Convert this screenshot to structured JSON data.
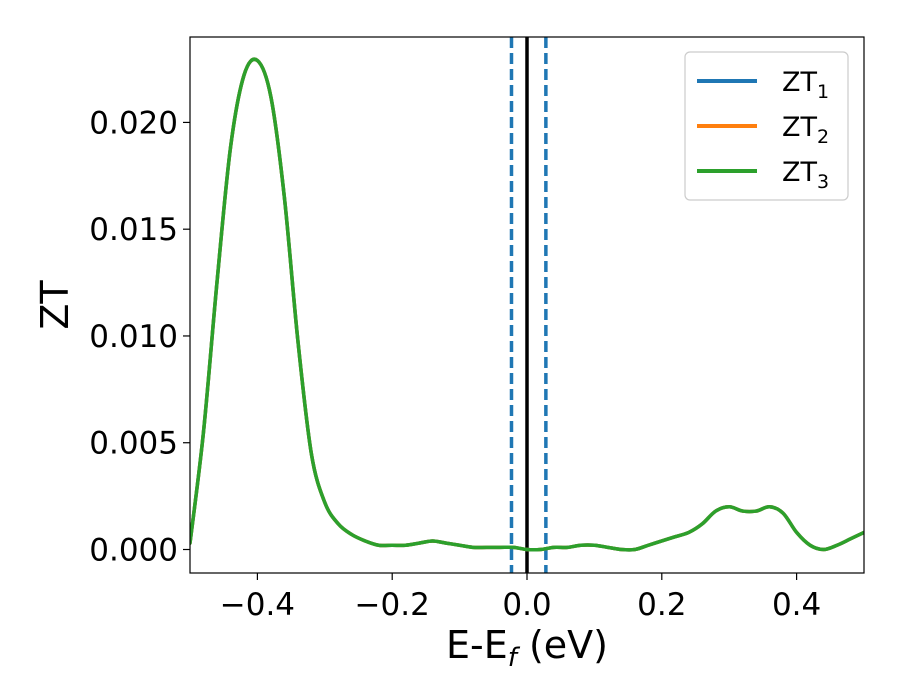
{
  "chart_data": {
    "type": "line",
    "xlabel": {
      "main": "E-E",
      "sub": "f",
      "suffix": " (eV)"
    },
    "ylabel": "ZT",
    "xlim": [
      -0.5,
      0.5
    ],
    "ylim": [
      -0.0011,
      0.024
    ],
    "xticks": [
      -0.4,
      -0.2,
      0.0,
      0.2,
      0.4
    ],
    "xtick_labels": [
      "−0.4",
      "−0.2",
      "0.0",
      "0.2",
      "0.4"
    ],
    "yticks": [
      0.0,
      0.005,
      0.01,
      0.015,
      0.02
    ],
    "ytick_labels": [
      "0.000",
      "0.005",
      "0.010",
      "0.015",
      "0.020"
    ],
    "legend": {
      "position": "top-right"
    },
    "vlines": [
      {
        "x": 0.0,
        "style": "solid",
        "color": "#000000"
      },
      {
        "x": -0.023,
        "style": "dashed",
        "color": "#1f77b4"
      },
      {
        "x": 0.028,
        "style": "dashed",
        "color": "#1f77b4"
      }
    ],
    "x": [
      -0.5,
      -0.48,
      -0.46,
      -0.44,
      -0.42,
      -0.4,
      -0.38,
      -0.36,
      -0.34,
      -0.32,
      -0.3,
      -0.28,
      -0.26,
      -0.24,
      -0.22,
      -0.2,
      -0.18,
      -0.16,
      -0.14,
      -0.12,
      -0.1,
      -0.08,
      -0.06,
      -0.04,
      -0.02,
      0.0,
      0.02,
      0.04,
      0.06,
      0.08,
      0.1,
      0.12,
      0.14,
      0.16,
      0.18,
      0.2,
      0.22,
      0.24,
      0.26,
      0.28,
      0.3,
      0.32,
      0.34,
      0.36,
      0.38,
      0.4,
      0.42,
      0.44,
      0.46,
      0.48,
      0.5
    ],
    "series": [
      {
        "name": "ZT",
        "sub": "1",
        "color": "#1f77b4",
        "values": [
          0.0003,
          0.0055,
          0.0125,
          0.0188,
          0.0222,
          0.0229,
          0.0212,
          0.0165,
          0.0098,
          0.0045,
          0.0022,
          0.0012,
          0.0007,
          0.0004,
          0.0002,
          0.0002,
          0.0002,
          0.0003,
          0.0004,
          0.0003,
          0.0002,
          0.0001,
          0.0001,
          0.0001,
          0.0001,
          0.0,
          0.0,
          0.0001,
          0.0001,
          0.0002,
          0.0002,
          0.0001,
          0.0,
          0.0,
          0.0002,
          0.0004,
          0.0006,
          0.0008,
          0.0012,
          0.0018,
          0.002,
          0.0018,
          0.0018,
          0.002,
          0.0017,
          0.0008,
          0.0002,
          0.0,
          0.0002,
          0.0005,
          0.0008
        ]
      },
      {
        "name": "ZT",
        "sub": "2",
        "color": "#ff7f0e",
        "values": [
          0.0003,
          0.0055,
          0.0125,
          0.0188,
          0.0222,
          0.0229,
          0.0212,
          0.0165,
          0.0098,
          0.0045,
          0.0022,
          0.0012,
          0.0007,
          0.0004,
          0.0002,
          0.0002,
          0.0002,
          0.0003,
          0.0004,
          0.0003,
          0.0002,
          0.0001,
          0.0001,
          0.0001,
          0.0001,
          0.0,
          0.0,
          0.0001,
          0.0001,
          0.0002,
          0.0002,
          0.0001,
          0.0,
          0.0,
          0.0002,
          0.0004,
          0.0006,
          0.0008,
          0.0012,
          0.0018,
          0.002,
          0.0018,
          0.0018,
          0.002,
          0.0017,
          0.0008,
          0.0002,
          0.0,
          0.0002,
          0.0005,
          0.0008
        ]
      },
      {
        "name": "ZT",
        "sub": "3",
        "color": "#2ca02c",
        "values": [
          0.0003,
          0.0055,
          0.0125,
          0.0188,
          0.0222,
          0.0229,
          0.0212,
          0.0165,
          0.0098,
          0.0045,
          0.0022,
          0.0012,
          0.0007,
          0.0004,
          0.0002,
          0.0002,
          0.0002,
          0.0003,
          0.0004,
          0.0003,
          0.0002,
          0.0001,
          0.0001,
          0.0001,
          0.0001,
          0.0,
          0.0,
          0.0001,
          0.0001,
          0.0002,
          0.0002,
          0.0001,
          0.0,
          0.0,
          0.0002,
          0.0004,
          0.0006,
          0.0008,
          0.0012,
          0.0018,
          0.002,
          0.0018,
          0.0018,
          0.002,
          0.0017,
          0.0008,
          0.0002,
          0.0,
          0.0002,
          0.0005,
          0.0008
        ]
      }
    ]
  }
}
